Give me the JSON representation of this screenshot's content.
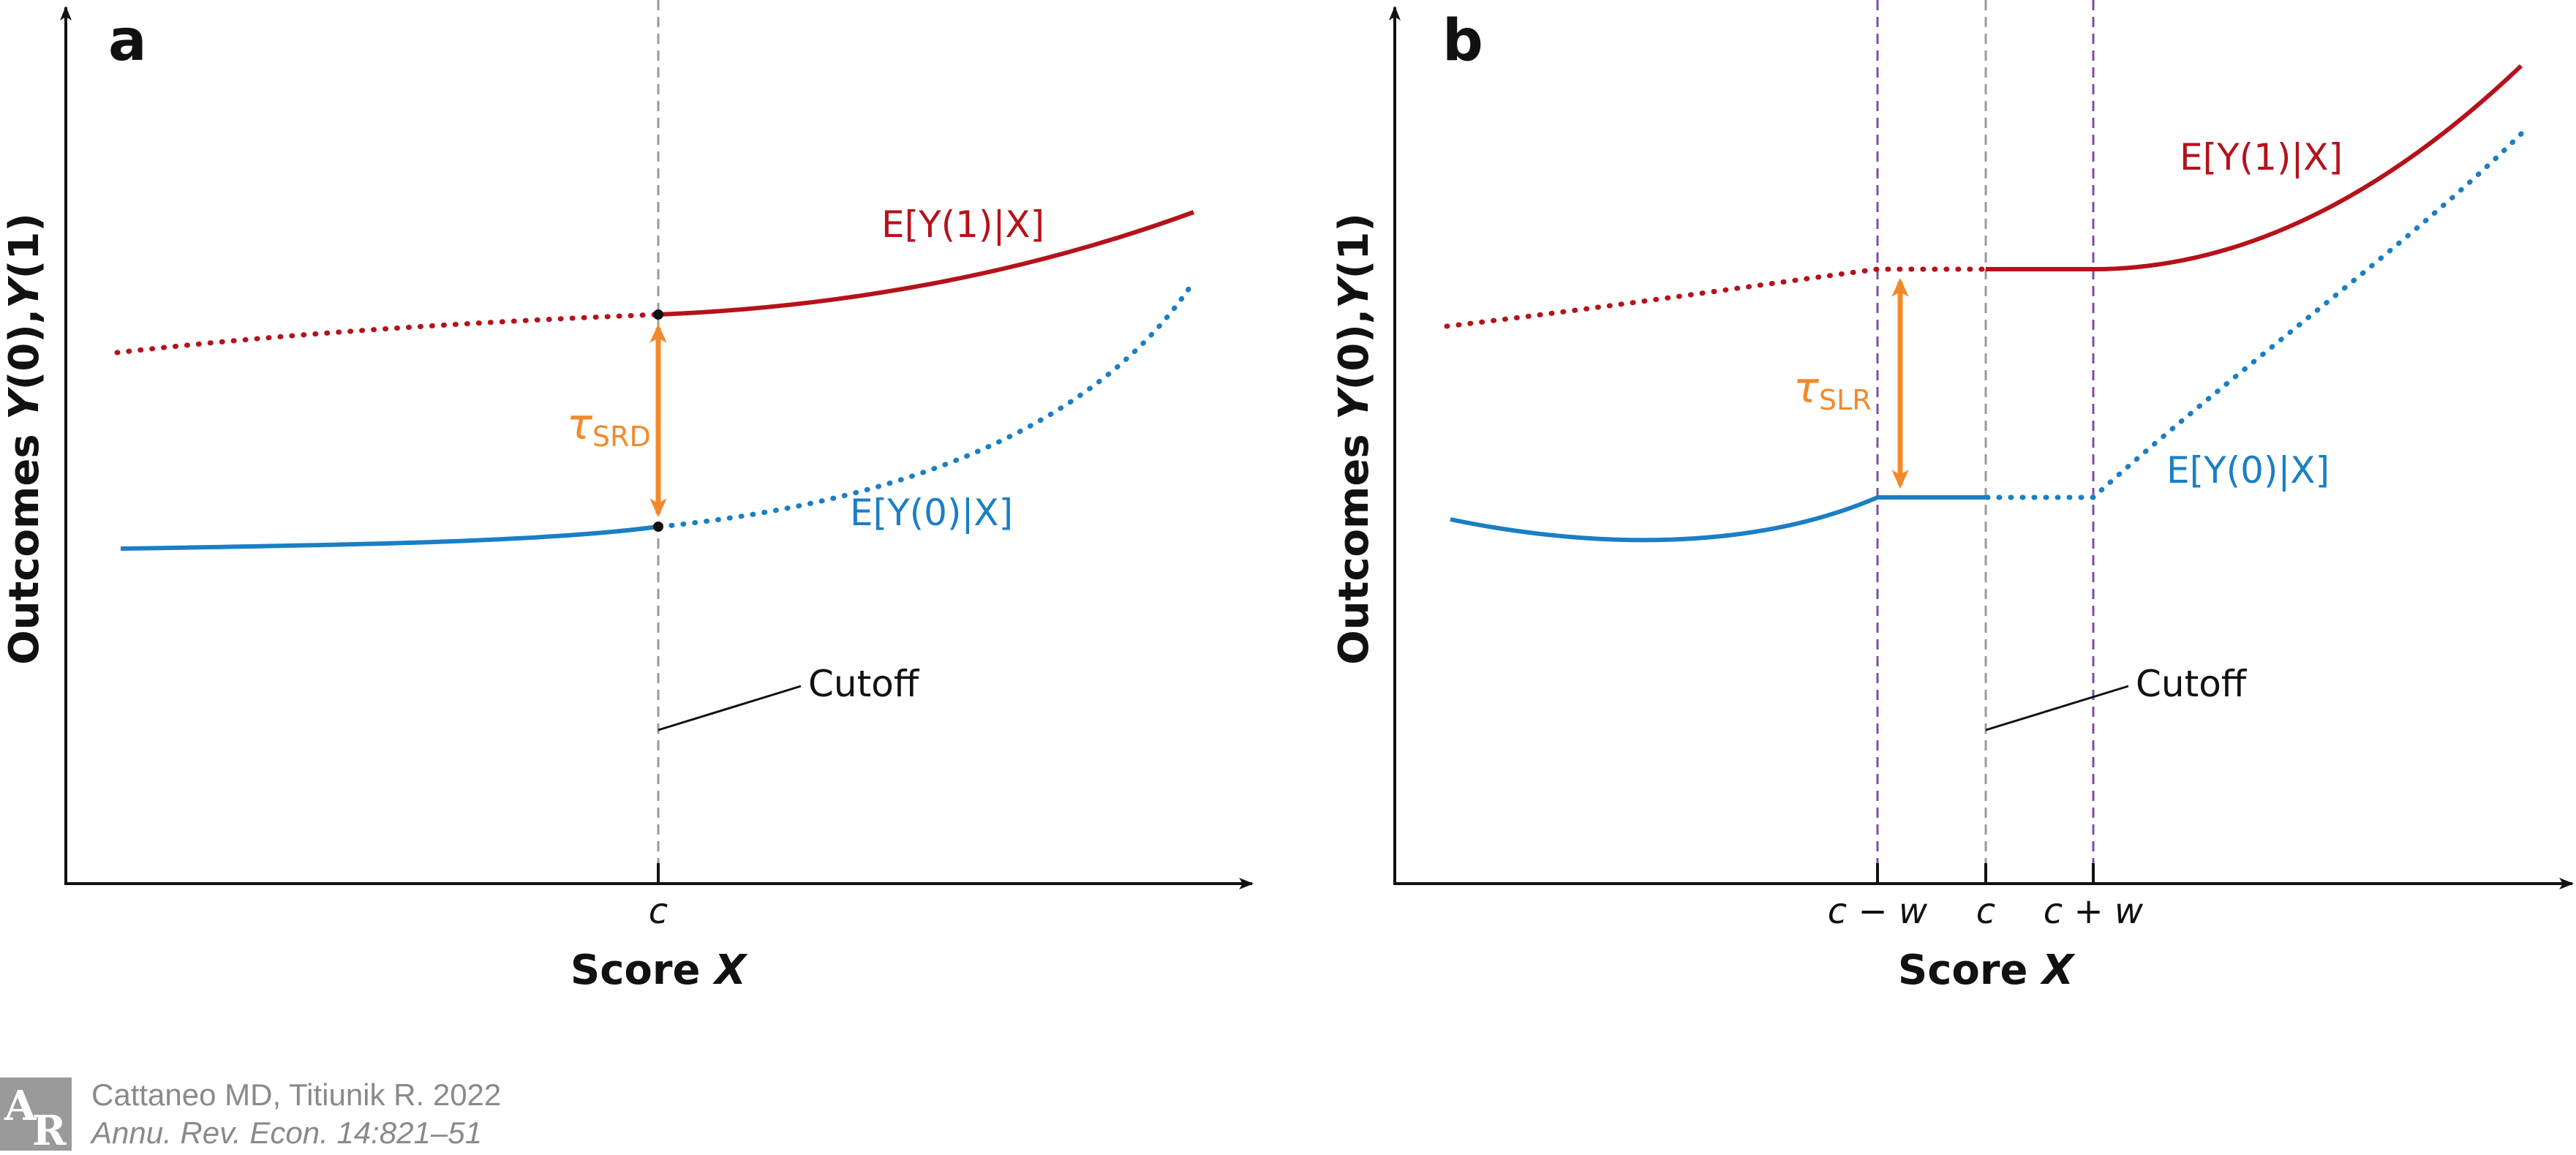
{
  "panel_a": {
    "letter": "a",
    "y_axis_title_pre": "Outcomes ",
    "y_axis_title_var0": "Y",
    "y_axis_title_mid": "(0),",
    "y_axis_title_var1": "Y",
    "y_axis_title_post": "(1)",
    "x_axis_title": "Score ",
    "x_axis_var": "X",
    "tick_c": "c",
    "label_treated": "E[Y(1)|X]",
    "label_control": "E[Y(0)|X]",
    "tau_symbol": "τ",
    "tau_sub": "SRD",
    "cutoff_label": "Cutoff"
  },
  "panel_b": {
    "letter": "b",
    "y_axis_title_pre": "Outcomes ",
    "y_axis_title_var0": "Y",
    "y_axis_title_mid": "(0),",
    "y_axis_title_var1": "Y",
    "y_axis_title_post": "(1)",
    "x_axis_title": "Score ",
    "x_axis_var": "X",
    "tick_c_minus_w": "c − w",
    "tick_c": "c",
    "tick_c_plus_w": "c + w",
    "label_treated": "E[Y(1)|X]",
    "label_control": "E[Y(0)|X]",
    "tau_symbol": "τ",
    "tau_sub": "SLR",
    "cutoff_label": "Cutoff"
  },
  "credit": {
    "logo_letter_1": "A",
    "logo_letter_2": "R",
    "line1": "Cattaneo MD, Titiunik R. 2022",
    "line2": "Annu. Rev. Econ. 14:821–51"
  },
  "colors": {
    "treated": "#b5121b",
    "control": "#1a7fc4",
    "tau": "#f08a2c",
    "cutoff_line": "#9a9a9a",
    "window_line": "#7b4fa3",
    "axis": "#111111"
  }
}
